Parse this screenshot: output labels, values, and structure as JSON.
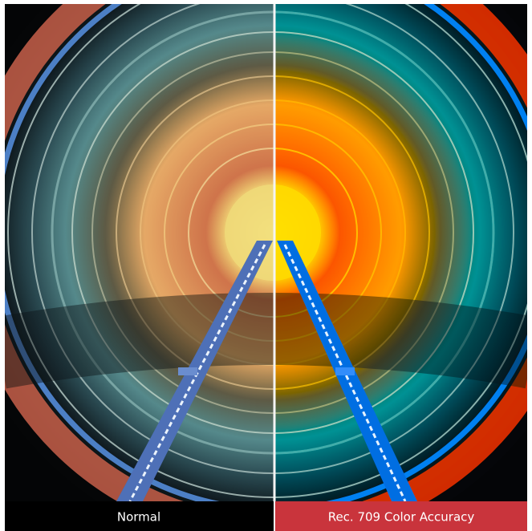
{
  "labels": {
    "left": "Normal",
    "right": "Rec. 709 Color Accuracy"
  }
}
